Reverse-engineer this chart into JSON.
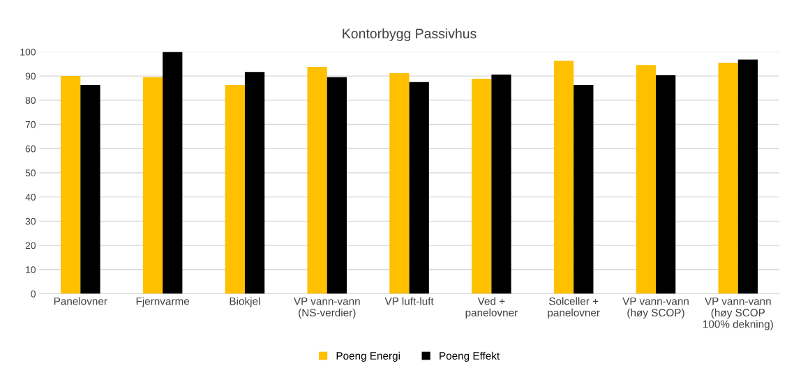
{
  "chart_data": {
    "type": "bar",
    "title": "Kontorbygg Passivhus",
    "categories": [
      "Panelovner",
      "Fjernvarme",
      "Biokjel",
      "VP vann-vann\n(NS-verdier)",
      "VP luft-luft",
      "Ved +\npanelovner",
      "Solceller +\npanelovner",
      "VP vann-vann\n(høy SCOP)",
      "VP vann-vann\n(høy SCOP\n100% dekning)"
    ],
    "series": [
      {
        "name": "Poeng Energi",
        "color": "#ffc000",
        "values": [
          90,
          89.5,
          86.3,
          93.8,
          91.2,
          88.9,
          96.3,
          94.6,
          95.5
        ]
      },
      {
        "name": "Poeng Effekt",
        "color": "#000000",
        "values": [
          86.3,
          100,
          91.7,
          89.5,
          87.5,
          90.6,
          86.3,
          90.3,
          96.8
        ]
      }
    ],
    "ylim": [
      0,
      100
    ],
    "yticks": [
      0,
      10,
      20,
      30,
      40,
      50,
      60,
      70,
      80,
      90,
      100
    ],
    "grid": "y",
    "legend": "bottom"
  }
}
